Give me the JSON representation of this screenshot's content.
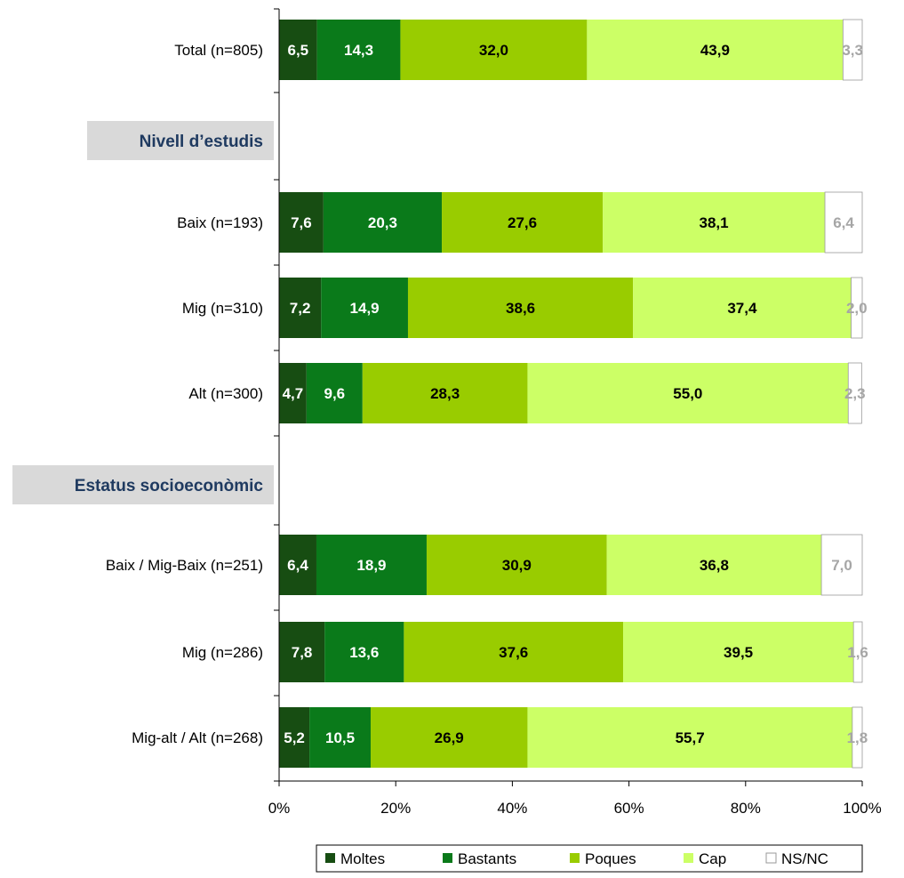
{
  "chart_data": {
    "type": "bar",
    "orientation": "horizontal",
    "stacked": true,
    "percent_stacked": true,
    "title": "",
    "xlabel": "",
    "ylabel": "",
    "xlim": [
      0,
      100
    ],
    "x_ticks": [
      "0%",
      "20%",
      "40%",
      "60%",
      "80%",
      "100%"
    ],
    "grid": false,
    "legend_position": "bottom",
    "categories": [
      "Total (n=805)",
      "Nivell d’estudis",
      "Baix (n=193)",
      "Mig (n=310)",
      "Alt (n=300)",
      "Estatus socioeconòmic",
      "Baix / Mig-Baix (n=251)",
      "Mig (n=286)",
      "Mig-alt / Alt (n=268)"
    ],
    "group_headers": [
      "Nivell d’estudis",
      "Estatus socioeconòmic"
    ],
    "series": [
      {
        "name": "Moltes",
        "color": "#174d12",
        "label_color": "#ffffff",
        "values": [
          6.5,
          null,
          7.6,
          7.2,
          4.7,
          null,
          6.4,
          7.8,
          5.2
        ],
        "labels": [
          "6,5",
          "",
          "7,6",
          "7,2",
          "4,7",
          "",
          "6,4",
          "7,8",
          "5,2"
        ]
      },
      {
        "name": "Bastants",
        "color": "#0a7a1a",
        "label_color": "#ffffff",
        "values": [
          14.3,
          null,
          20.3,
          14.9,
          9.6,
          null,
          18.9,
          13.6,
          10.5
        ],
        "labels": [
          "14,3",
          "",
          "20,3",
          "14,9",
          "9,6",
          "",
          "18,9",
          "13,6",
          "10,5"
        ]
      },
      {
        "name": "Poques",
        "color": "#99cc00",
        "label_color": "#000000",
        "values": [
          32.0,
          null,
          27.6,
          38.6,
          28.3,
          null,
          30.9,
          37.6,
          26.9
        ],
        "labels": [
          "32,0",
          "",
          "27,6",
          "38,6",
          "28,3",
          "",
          "30,9",
          "37,6",
          "26,9"
        ]
      },
      {
        "name": "Cap",
        "color": "#ccff66",
        "label_color": "#000000",
        "values": [
          43.9,
          null,
          38.1,
          37.4,
          55.0,
          null,
          36.8,
          39.5,
          55.7
        ],
        "labels": [
          "43,9",
          "",
          "38,1",
          "37,4",
          "55,0",
          "",
          "36,8",
          "39,5",
          "55,7"
        ]
      },
      {
        "name": "NS/NC",
        "color": "#ffffff",
        "label_color": "#a6a6a6",
        "values": [
          3.3,
          null,
          6.4,
          2.0,
          2.3,
          null,
          7.0,
          1.6,
          1.8
        ],
        "labels": [
          "3,3",
          "",
          "6,4",
          "2,0",
          "2,3",
          "",
          "7,0",
          "1,6",
          "1,8"
        ]
      }
    ]
  },
  "colors": {
    "header_bg": "#d9d9d9",
    "header_text": "#1f3a60",
    "axis": "#000000",
    "bar_outline": "#999999"
  }
}
